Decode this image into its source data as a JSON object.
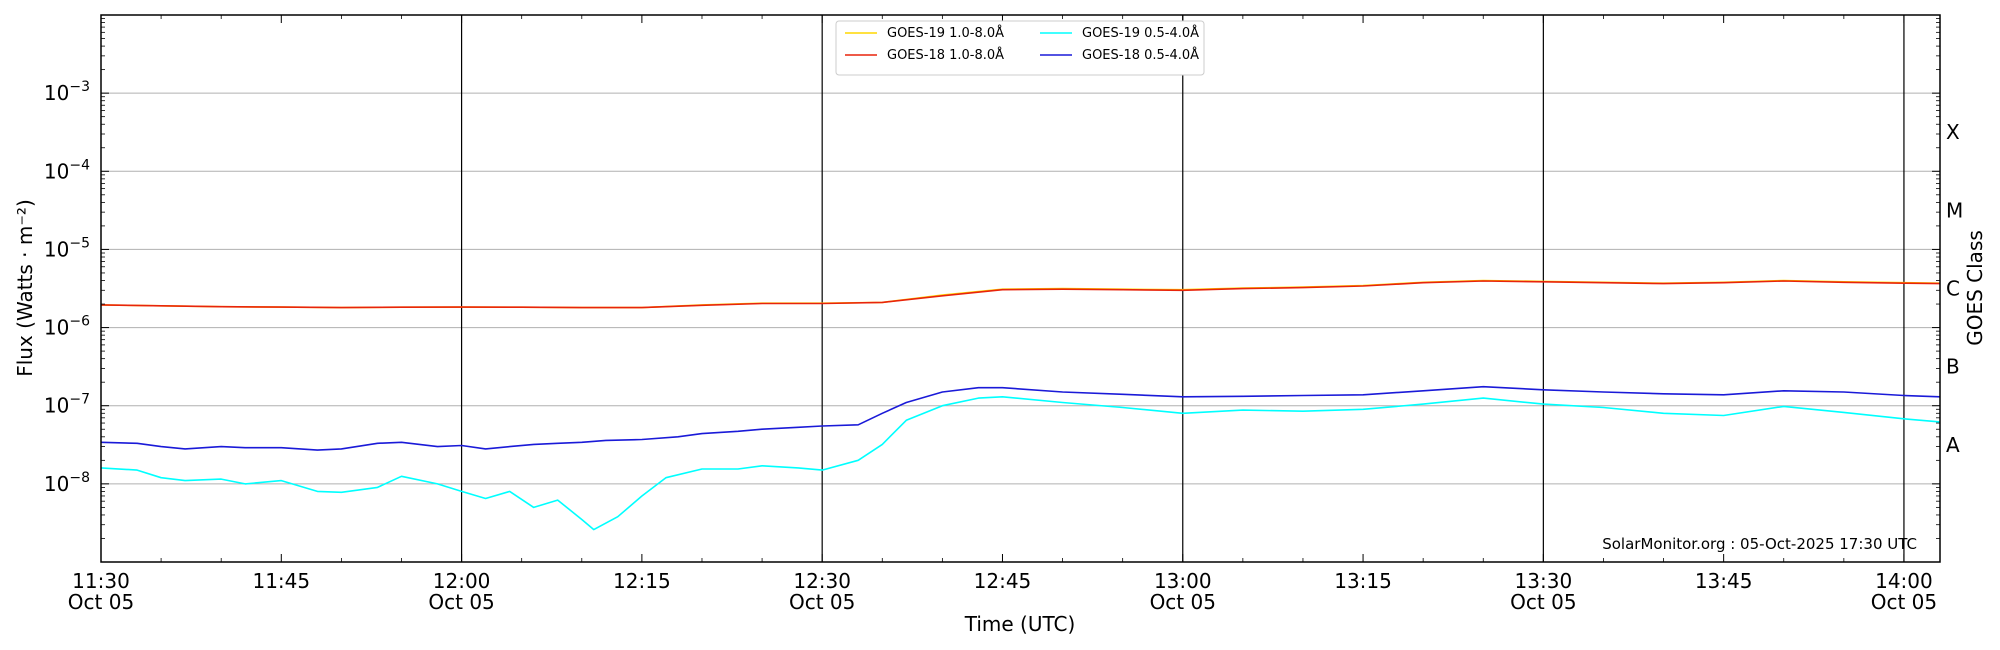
{
  "chart_data": {
    "type": "line",
    "xlabel": "Time (UTC)",
    "ylabel": "Flux (Watts · m⁻²)",
    "ylabel_right": "GOES Class",
    "credit": "SolarMonitor.org : 05-Oct-2025 17:30 UTC",
    "xlim": [
      "11:30",
      "14:03"
    ],
    "ylim": [
      1e-09,
      0.01
    ],
    "yscale": "log",
    "grid": "horizontal at decades",
    "legend_position": "top-center",
    "x_ticks": [
      {
        "time": "11:30",
        "label": "11:30",
        "sublabel": "Oct 05"
      },
      {
        "time": "11:45",
        "label": "11:45",
        "sublabel": ""
      },
      {
        "time": "12:00",
        "label": "12:00",
        "sublabel": "Oct 05"
      },
      {
        "time": "12:15",
        "label": "12:15",
        "sublabel": ""
      },
      {
        "time": "12:30",
        "label": "12:30",
        "sublabel": "Oct 05"
      },
      {
        "time": "12:45",
        "label": "12:45",
        "sublabel": ""
      },
      {
        "time": "13:00",
        "label": "13:00",
        "sublabel": "Oct 05"
      },
      {
        "time": "13:15",
        "label": "13:15",
        "sublabel": ""
      },
      {
        "time": "13:30",
        "label": "13:30",
        "sublabel": "Oct 05"
      },
      {
        "time": "13:45",
        "label": "13:45",
        "sublabel": ""
      },
      {
        "time": "14:00",
        "label": "14:00",
        "sublabel": "Oct 05"
      }
    ],
    "vlines": [
      "12:00",
      "12:30",
      "13:00",
      "13:30",
      "14:00"
    ],
    "y_ticks": [
      {
        "value": 1e-08,
        "base": "10",
        "exp": "−8"
      },
      {
        "value": 1e-07,
        "base": "10",
        "exp": "−7"
      },
      {
        "value": 1e-06,
        "base": "10",
        "exp": "−6"
      },
      {
        "value": 1e-05,
        "base": "10",
        "exp": "−5"
      },
      {
        "value": 0.0001,
        "base": "10",
        "exp": "−4"
      },
      {
        "value": 0.001,
        "base": "10",
        "exp": "−3"
      }
    ],
    "goes_classes": [
      {
        "label": "A",
        "value": 3.16e-08
      },
      {
        "label": "B",
        "value": 3.16e-07
      },
      {
        "label": "C",
        "value": 3.16e-06
      },
      {
        "label": "M",
        "value": 3.16e-05
      },
      {
        "label": "X",
        "value": 0.000316
      }
    ],
    "series": [
      {
        "name": "GOES-19 1.0-8.0Å",
        "color": "#ffd700",
        "x": [
          "11:30",
          "11:35",
          "11:40",
          "11:45",
          "11:50",
          "11:55",
          "12:00",
          "12:05",
          "12:10",
          "12:15",
          "12:20",
          "12:25",
          "12:30",
          "12:35",
          "12:40",
          "12:45",
          "12:50",
          "12:55",
          "13:00",
          "13:05",
          "13:10",
          "13:15",
          "13:20",
          "13:25",
          "13:30",
          "13:35",
          "13:40",
          "13:45",
          "13:50",
          "13:55",
          "14:00",
          "14:03"
        ],
        "y": [
          1.95e-06,
          1.9e-06,
          1.85e-06,
          1.83e-06,
          1.8e-06,
          1.82e-06,
          1.83e-06,
          1.82e-06,
          1.8e-06,
          1.8e-06,
          1.95e-06,
          2.05e-06,
          2.05e-06,
          2.1e-06,
          2.6e-06,
          3.1e-06,
          3.15e-06,
          3.1e-06,
          3.05e-06,
          3.2e-06,
          3.3e-06,
          3.45e-06,
          3.8e-06,
          4e-06,
          3.9e-06,
          3.8e-06,
          3.7e-06,
          3.8e-06,
          4e-06,
          3.85e-06,
          3.75e-06,
          3.7e-06
        ]
      },
      {
        "name": "GOES-18 1.0-8.0Å",
        "color": "#e8240c",
        "x": [
          "11:30",
          "11:35",
          "11:40",
          "11:45",
          "11:50",
          "11:55",
          "12:00",
          "12:05",
          "12:10",
          "12:15",
          "12:20",
          "12:25",
          "12:30",
          "12:35",
          "12:40",
          "12:45",
          "12:50",
          "12:55",
          "13:00",
          "13:05",
          "13:10",
          "13:15",
          "13:20",
          "13:25",
          "13:30",
          "13:35",
          "13:40",
          "13:45",
          "13:50",
          "13:55",
          "14:00",
          "14:03"
        ],
        "y": [
          1.95e-06,
          1.9e-06,
          1.85e-06,
          1.83e-06,
          1.8e-06,
          1.82e-06,
          1.83e-06,
          1.82e-06,
          1.8e-06,
          1.8e-06,
          1.93e-06,
          2.03e-06,
          2.03e-06,
          2.1e-06,
          2.55e-06,
          3.05e-06,
          3.1e-06,
          3.05e-06,
          3e-06,
          3.15e-06,
          3.25e-06,
          3.4e-06,
          3.75e-06,
          3.95e-06,
          3.85e-06,
          3.75e-06,
          3.65e-06,
          3.75e-06,
          3.95e-06,
          3.8e-06,
          3.7e-06,
          3.65e-06
        ]
      },
      {
        "name": "GOES-19 0.5-4.0Å",
        "color": "#00ffff",
        "x": [
          "11:30",
          "11:33",
          "11:35",
          "11:37",
          "11:40",
          "11:42",
          "11:45",
          "11:48",
          "11:50",
          "11:53",
          "11:55",
          "11:58",
          "12:00",
          "12:02",
          "12:04",
          "12:06",
          "12:08",
          "12:10",
          "12:11",
          "12:13",
          "12:15",
          "12:17",
          "12:20",
          "12:23",
          "12:25",
          "12:28",
          "12:30",
          "12:33",
          "12:35",
          "12:37",
          "12:40",
          "12:43",
          "12:45",
          "12:50",
          "12:55",
          "13:00",
          "13:05",
          "13:10",
          "13:15",
          "13:20",
          "13:25",
          "13:30",
          "13:35",
          "13:40",
          "13:45",
          "13:50",
          "13:55",
          "14:00",
          "14:03"
        ],
        "y": [
          1.6e-08,
          1.5e-08,
          1.2e-08,
          1.1e-08,
          1.15e-08,
          1e-08,
          1.1e-08,
          8e-09,
          7.8e-09,
          9e-09,
          1.25e-08,
          1e-08,
          8e-09,
          6.5e-09,
          8e-09,
          5e-09,
          6.2e-09,
          3.5e-09,
          2.6e-09,
          3.8e-09,
          7e-09,
          1.2e-08,
          1.55e-08,
          1.55e-08,
          1.7e-08,
          1.6e-08,
          1.5e-08,
          2e-08,
          3.2e-08,
          6.5e-08,
          1e-07,
          1.25e-07,
          1.3e-07,
          1.1e-07,
          9.5e-08,
          8e-08,
          8.8e-08,
          8.5e-08,
          9e-08,
          1.05e-07,
          1.25e-07,
          1.05e-07,
          9.5e-08,
          8e-08,
          7.5e-08,
          9.8e-08,
          8.2e-08,
          6.8e-08,
          6.2e-08
        ]
      },
      {
        "name": "GOES-18 0.5-4.0Å",
        "color": "#1a1ad8",
        "x": [
          "11:30",
          "11:33",
          "11:35",
          "11:37",
          "11:40",
          "11:42",
          "11:45",
          "11:48",
          "11:50",
          "11:53",
          "11:55",
          "11:58",
          "12:00",
          "12:02",
          "12:04",
          "12:06",
          "12:08",
          "12:10",
          "12:12",
          "12:15",
          "12:18",
          "12:20",
          "12:23",
          "12:25",
          "12:28",
          "12:30",
          "12:33",
          "12:35",
          "12:37",
          "12:40",
          "12:43",
          "12:45",
          "12:50",
          "12:55",
          "13:00",
          "13:05",
          "13:10",
          "13:15",
          "13:20",
          "13:25",
          "13:30",
          "13:35",
          "13:40",
          "13:45",
          "13:50",
          "13:55",
          "14:00",
          "14:03"
        ],
        "y": [
          3.4e-08,
          3.3e-08,
          3e-08,
          2.8e-08,
          3e-08,
          2.9e-08,
          2.9e-08,
          2.7e-08,
          2.8e-08,
          3.3e-08,
          3.4e-08,
          3e-08,
          3.1e-08,
          2.8e-08,
          3e-08,
          3.2e-08,
          3.3e-08,
          3.4e-08,
          3.6e-08,
          3.7e-08,
          4e-08,
          4.4e-08,
          4.7e-08,
          5e-08,
          5.3e-08,
          5.5e-08,
          5.7e-08,
          8e-08,
          1.1e-07,
          1.5e-07,
          1.7e-07,
          1.7e-07,
          1.5e-07,
          1.4e-07,
          1.3e-07,
          1.32e-07,
          1.35e-07,
          1.38e-07,
          1.55e-07,
          1.75e-07,
          1.6e-07,
          1.5e-07,
          1.42e-07,
          1.38e-07,
          1.55e-07,
          1.5e-07,
          1.35e-07,
          1.3e-07
        ]
      }
    ]
  }
}
